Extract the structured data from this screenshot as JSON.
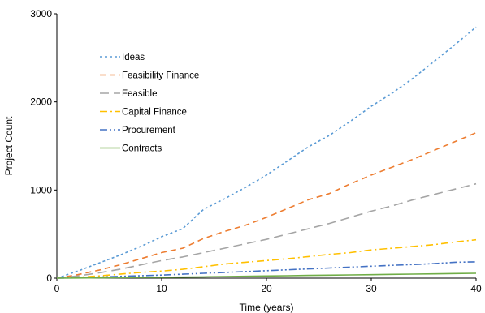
{
  "chart_data": {
    "type": "line",
    "title": "",
    "xlabel": "Time (years)",
    "ylabel": "Project Count",
    "xlim": [
      0,
      40
    ],
    "ylim": [
      0,
      3000
    ],
    "x_ticks": [
      "0",
      "10",
      "20",
      "30",
      "40"
    ],
    "y_ticks": [
      "0",
      "1000",
      "2000",
      "3000"
    ],
    "grid": false,
    "legend_position": "top-left",
    "x": [
      0,
      2,
      4,
      6,
      8,
      10,
      12,
      14,
      16,
      18,
      20,
      22,
      24,
      26,
      28,
      30,
      32,
      34,
      36,
      38,
      40
    ],
    "series": [
      {
        "name": "Ideas",
        "color": "#5B9BD5",
        "dash": "dot",
        "values": [
          0,
          80,
          170,
          260,
          360,
          470,
          560,
          780,
          900,
          1030,
          1170,
          1330,
          1490,
          1620,
          1780,
          1950,
          2100,
          2270,
          2460,
          2650,
          2850
        ]
      },
      {
        "name": "Feasibility Finance",
        "color": "#ED7D31",
        "dash": "dash",
        "values": [
          0,
          40,
          90,
          150,
          220,
          290,
          340,
          450,
          530,
          600,
          690,
          790,
          890,
          960,
          1070,
          1170,
          1260,
          1350,
          1450,
          1550,
          1650
        ]
      },
      {
        "name": "Feasible",
        "color": "#A5A5A5",
        "dash": "longdash",
        "values": [
          0,
          25,
          60,
          100,
          150,
          200,
          240,
          290,
          340,
          390,
          440,
          500,
          560,
          620,
          690,
          760,
          820,
          890,
          950,
          1010,
          1070
        ]
      },
      {
        "name": "Capital Finance",
        "color": "#FFC000",
        "dash": "dashdot",
        "values": [
          0,
          10,
          25,
          45,
          65,
          80,
          100,
          130,
          160,
          180,
          200,
          220,
          245,
          270,
          290,
          320,
          340,
          360,
          380,
          410,
          435
        ]
      },
      {
        "name": "Procurement",
        "color": "#4472C4",
        "dash": "dashdotdot",
        "values": [
          0,
          5,
          12,
          20,
          28,
          35,
          45,
          55,
          65,
          75,
          85,
          95,
          105,
          115,
          125,
          135,
          145,
          155,
          165,
          180,
          185
        ]
      },
      {
        "name": "Contracts",
        "color": "#70AD47",
        "dash": "solid",
        "values": [
          0,
          2,
          4,
          6,
          8,
          10,
          12,
          15,
          18,
          21,
          25,
          28,
          31,
          34,
          37,
          40,
          43,
          46,
          49,
          52,
          55
        ]
      }
    ]
  }
}
